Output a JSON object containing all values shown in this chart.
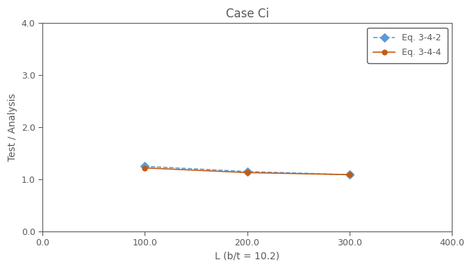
{
  "title": "Case Ci",
  "xlabel": "L (b/t = 10.2)",
  "ylabel": "Test / Analysis",
  "xlim": [
    0.0,
    400.0
  ],
  "ylim": [
    0.0,
    4.0
  ],
  "xticks": [
    0.0,
    100.0,
    200.0,
    300.0,
    400.0
  ],
  "yticks": [
    0.0,
    1.0,
    2.0,
    3.0,
    4.0
  ],
  "series": [
    {
      "label": "Eq. 3-4-2",
      "x": [
        100.0,
        200.0,
        300.0
      ],
      "y": [
        1.25,
        1.15,
        1.09
      ],
      "color": "#5b9bd5",
      "linestyle": "dashed",
      "marker": "D",
      "markersize": 6
    },
    {
      "label": "Eq. 3-4-4",
      "x": [
        100.0,
        200.0,
        300.0
      ],
      "y": [
        1.22,
        1.13,
        1.09
      ],
      "color": "#c55a11",
      "linestyle": "solid",
      "marker": "o",
      "markersize": 5
    }
  ],
  "legend_loc": "upper right",
  "title_fontsize": 12,
  "label_fontsize": 10,
  "tick_fontsize": 9,
  "legend_fontsize": 9,
  "text_color": "#595959",
  "spine_color": "#595959",
  "background_color": "#ffffff"
}
